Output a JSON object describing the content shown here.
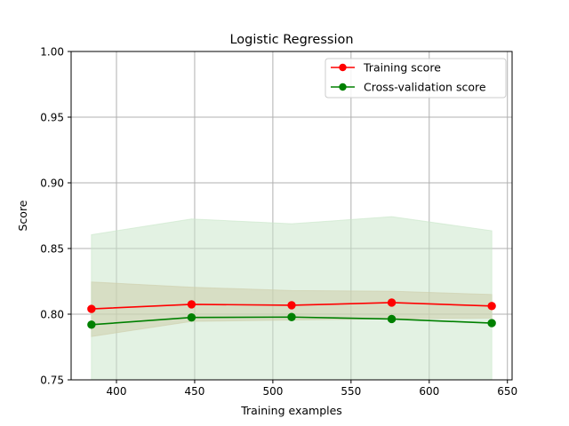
{
  "chart_data": {
    "type": "line",
    "title": "Logistic Regression",
    "xlabel": "Training examples",
    "ylabel": "Score",
    "xlim": [
      371,
      653
    ],
    "ylim": [
      0.75,
      1.0
    ],
    "xticks": [
      400,
      450,
      500,
      550,
      600,
      650
    ],
    "yticks": [
      0.75,
      0.8,
      0.85,
      0.9,
      0.95,
      1.0
    ],
    "xtick_labels": [
      "400",
      "450",
      "500",
      "550",
      "600",
      "650"
    ],
    "ytick_labels": [
      "0.75",
      "0.80",
      "0.85",
      "0.90",
      "0.95",
      "1.00"
    ],
    "grid": true,
    "legend_position": "top-right",
    "x": [
      384,
      448,
      512,
      576,
      640
    ],
    "series": [
      {
        "name": "Training score",
        "color": "#ff0000",
        "band_color": "#d2b48c",
        "values": [
          0.804,
          0.8075,
          0.8068,
          0.8088,
          0.8062
        ],
        "lower": [
          0.783,
          0.7945,
          0.7955,
          0.7965,
          0.797
        ],
        "upper": [
          0.8245,
          0.8205,
          0.818,
          0.8175,
          0.815
        ]
      },
      {
        "name": "Cross-validation score",
        "color": "#008000",
        "band_color": "#c8e6c8",
        "values": [
          0.792,
          0.7975,
          0.7978,
          0.7963,
          0.7932
        ],
        "lower": [
          0.75,
          0.75,
          0.75,
          0.75,
          0.75
        ],
        "upper": [
          0.8605,
          0.8725,
          0.8688,
          0.8742,
          0.8635
        ]
      }
    ]
  }
}
